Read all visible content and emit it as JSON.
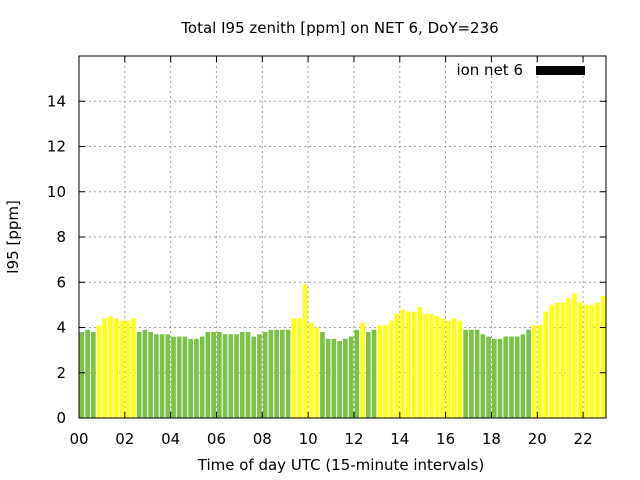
{
  "chart_data": {
    "type": "bar",
    "title": "Total I95 zenith [ppm] on NET 6, DoY=236",
    "xlabel": "Time of day UTC (15-minute intervals)",
    "ylabel": "I95 [ppm]",
    "xlim": [
      0,
      23
    ],
    "ylim": [
      0,
      16
    ],
    "x_ticks": [
      0,
      2,
      4,
      6,
      8,
      10,
      12,
      14,
      16,
      18,
      20,
      22
    ],
    "x_tick_labels": [
      "00",
      "02",
      "04",
      "06",
      "08",
      "10",
      "12",
      "14",
      "16",
      "18",
      "20",
      "22"
    ],
    "y_ticks": [
      0,
      2,
      4,
      6,
      8,
      10,
      12,
      14
    ],
    "y_tick_labels": [
      "0",
      "2",
      "4",
      "6",
      "8",
      "10",
      "12",
      "14"
    ],
    "grid": true,
    "bar_interval_hours": 0.25,
    "legend": {
      "position": "top-right",
      "entries": [
        {
          "label": "ion net 6",
          "color": "#000000"
        }
      ]
    },
    "colors": {
      "green": "#7cc24a",
      "yellow": "#ffff1e"
    },
    "series": [
      {
        "name": "ion net 6",
        "x_start": 0,
        "values": [
          3.8,
          3.9,
          3.8,
          4.1,
          4.4,
          4.5,
          4.4,
          4.3,
          4.3,
          4.4,
          3.8,
          3.9,
          3.8,
          3.7,
          3.7,
          3.7,
          3.6,
          3.6,
          3.6,
          3.5,
          3.5,
          3.6,
          3.8,
          3.8,
          3.8,
          3.7,
          3.7,
          3.7,
          3.8,
          3.8,
          3.6,
          3.7,
          3.8,
          3.9,
          3.9,
          3.9,
          3.9,
          4.4,
          4.4,
          5.9,
          4.2,
          4.0,
          3.8,
          3.5,
          3.5,
          3.4,
          3.5,
          3.6,
          3.9,
          4.2,
          3.8,
          3.9,
          4.1,
          4.1,
          4.3,
          4.6,
          4.8,
          4.7,
          4.7,
          4.9,
          4.6,
          4.6,
          4.5,
          4.4,
          4.3,
          4.4,
          4.3,
          3.9,
          3.9,
          3.9,
          3.7,
          3.6,
          3.5,
          3.5,
          3.6,
          3.6,
          3.6,
          3.7,
          3.9,
          4.1,
          4.1,
          4.7,
          5.0,
          5.1,
          5.1,
          5.3,
          5.5,
          5.1,
          5.0,
          5.0,
          5.1,
          5.4
        ],
        "colors": [
          "green",
          "green",
          "green",
          "yellow",
          "yellow",
          "yellow",
          "yellow",
          "yellow",
          "yellow",
          "yellow",
          "green",
          "green",
          "green",
          "green",
          "green",
          "green",
          "green",
          "green",
          "green",
          "green",
          "green",
          "green",
          "green",
          "green",
          "green",
          "green",
          "green",
          "green",
          "green",
          "green",
          "green",
          "green",
          "green",
          "green",
          "green",
          "green",
          "green",
          "yellow",
          "yellow",
          "yellow",
          "yellow",
          "yellow",
          "green",
          "green",
          "green",
          "green",
          "green",
          "green",
          "green",
          "yellow",
          "green",
          "green",
          "yellow",
          "yellow",
          "yellow",
          "yellow",
          "yellow",
          "yellow",
          "yellow",
          "yellow",
          "yellow",
          "yellow",
          "yellow",
          "yellow",
          "yellow",
          "yellow",
          "yellow",
          "green",
          "green",
          "green",
          "green",
          "green",
          "green",
          "green",
          "green",
          "green",
          "green",
          "green",
          "green",
          "yellow",
          "yellow",
          "yellow",
          "yellow",
          "yellow",
          "yellow",
          "yellow",
          "yellow",
          "yellow",
          "yellow",
          "yellow",
          "yellow",
          "yellow"
        ]
      }
    ]
  }
}
